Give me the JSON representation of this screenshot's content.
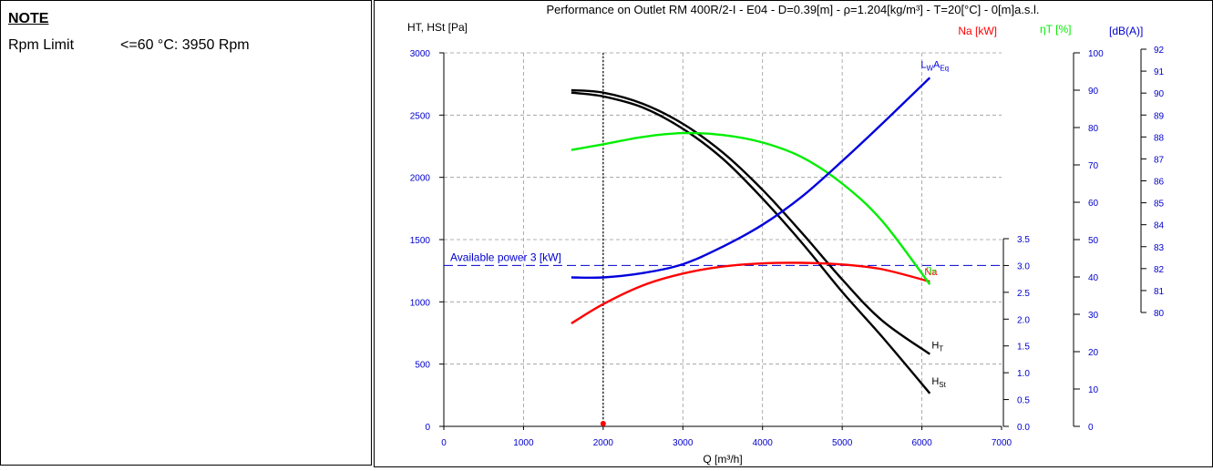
{
  "note": {
    "title": "NOTE",
    "rpm_label": "Rpm Limit",
    "rpm_value": "<=60 °C:  3950 Rpm"
  },
  "chart_data": {
    "type": "line",
    "title": "Performance on Outlet RM 400R/2-I - E04 - D=0.39[m] - ρ=1.204[kg/m³] - T=20[°C] - 0[m]a.s.l.",
    "xlabel": "Q [m³/h]",
    "xlim": [
      0,
      7000
    ],
    "x_ticks": [
      "0",
      "1000",
      "2000",
      "3000",
      "4000",
      "5000",
      "6000",
      "7000"
    ],
    "grid": true,
    "colors": {
      "pressure": "#000000",
      "power": "#ff0000",
      "efficiency": "#00ee00",
      "sound": "#0000dd",
      "axis_text": "#0000cc"
    },
    "axes": {
      "pressure": {
        "label": "HT, HSt [Pa]",
        "range": [
          0,
          3000
        ],
        "ticks": [
          "0",
          "500",
          "1000",
          "1500",
          "2000",
          "2500",
          "3000"
        ]
      },
      "power": {
        "label": "Na [kW]",
        "range": [
          0,
          3.5
        ],
        "ticks": [
          "0.0",
          "0.5",
          "1.0",
          "1.5",
          "2.0",
          "2.5",
          "3.0",
          "3.5"
        ]
      },
      "efficiency": {
        "label": "ηT [%]",
        "range": [
          0,
          100
        ],
        "ticks": [
          "0",
          "10",
          "20",
          "30",
          "40",
          "50",
          "60",
          "70",
          "80",
          "90",
          "100"
        ]
      },
      "sound": {
        "label": "[dB(A)]",
        "range": [
          80,
          92
        ],
        "ticks": [
          "80",
          "81",
          "82",
          "83",
          "84",
          "85",
          "86",
          "87",
          "88",
          "89",
          "90",
          "91",
          "92"
        ]
      }
    },
    "series": [
      {
        "name": "HT",
        "axis": "pressure",
        "x": [
          1600,
          2000,
          2500,
          3000,
          3500,
          4000,
          4500,
          5000,
          5500,
          6100
        ],
        "y": [
          2700,
          2680,
          2590,
          2430,
          2200,
          1900,
          1550,
          1180,
          850,
          580
        ]
      },
      {
        "name": "HSt",
        "axis": "pressure",
        "x": [
          1600,
          2000,
          2500,
          3000,
          3500,
          4000,
          4500,
          5000,
          5500,
          6100
        ],
        "y": [
          2680,
          2650,
          2560,
          2390,
          2150,
          1830,
          1470,
          1080,
          720,
          265
        ]
      },
      {
        "name": "Na",
        "axis": "power",
        "x": [
          1600,
          2000,
          2500,
          3000,
          3500,
          4000,
          4500,
          5000,
          5500,
          6100
        ],
        "y": [
          1.92,
          2.28,
          2.63,
          2.85,
          2.98,
          3.04,
          3.05,
          3.02,
          2.93,
          2.7
        ]
      },
      {
        "name": "ηT",
        "axis": "efficiency",
        "x": [
          1600,
          2000,
          2500,
          3000,
          3500,
          4000,
          4500,
          5000,
          5500,
          6100
        ],
        "y": [
          74,
          75.5,
          77.5,
          78.5,
          78,
          76,
          72,
          65,
          55,
          38
        ]
      },
      {
        "name": "LWAEq",
        "axis": "sound",
        "x": [
          1600,
          2000,
          2500,
          3000,
          3500,
          4000,
          4500,
          5000,
          5500,
          6100
        ],
        "y": [
          81.6,
          81.6,
          81.8,
          82.2,
          83.0,
          84.0,
          85.3,
          86.9,
          88.6,
          90.7
        ]
      }
    ],
    "reference_lines": [
      {
        "type": "horizontal",
        "axis": "power",
        "value": 3.0,
        "label": "Available power 3 [kW]",
        "style": "dashed"
      },
      {
        "type": "vertical",
        "axis": "x",
        "value": 2000,
        "style": "dotted"
      }
    ]
  }
}
